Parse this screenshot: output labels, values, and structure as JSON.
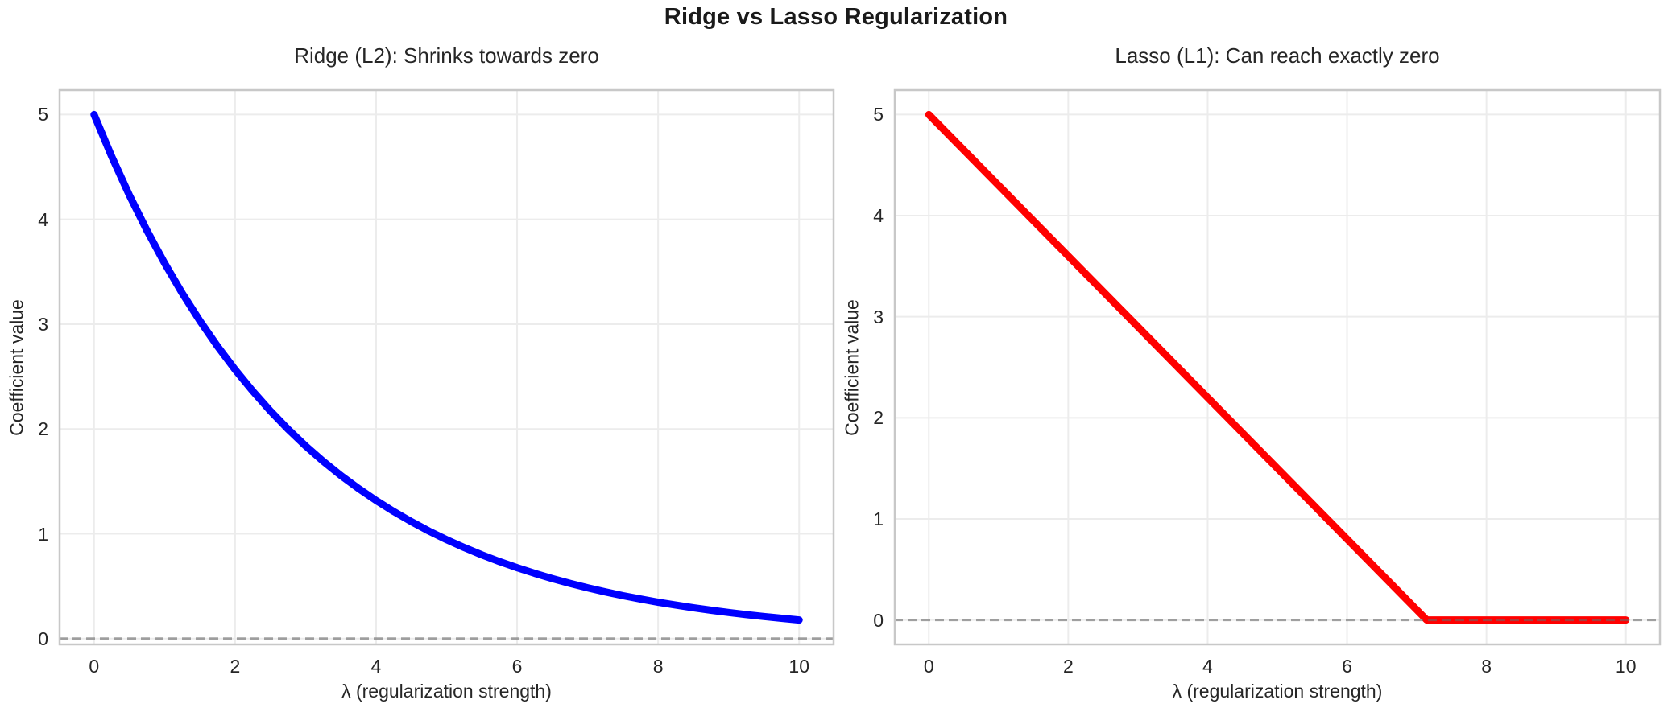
{
  "figure": {
    "suptitle": "Ridge vs Lasso Regularization",
    "background": "#ffffff"
  },
  "theme": {
    "grid_color": "#ececec",
    "spine_color": "#c8c8c8",
    "title_color": "#1a1a1a",
    "text_color": "#262626",
    "zero_line_color": "rgba(105,105,105,0.6)",
    "zero_line_dash": "11 6"
  },
  "chart_data": [
    {
      "id": "ridge",
      "type": "line",
      "title": "Ridge (L2): Shrinks towards zero",
      "xlabel": "λ (regularization strength)",
      "ylabel": "Coefficient value",
      "line_color": "#0000ff",
      "line_width": 9,
      "grid": true,
      "legend": null,
      "xlim": [
        -0.5,
        10.5
      ],
      "ylim": [
        -0.063,
        5.241
      ],
      "xticks": [
        0,
        2,
        4,
        6,
        8,
        10
      ],
      "yticks": [
        0,
        1,
        2,
        3,
        4,
        5
      ],
      "zero_line": {
        "value": 0,
        "style": "dashed"
      },
      "x": [
        0,
        0.25,
        0.5,
        0.75,
        1,
        1.25,
        1.5,
        1.75,
        2,
        2.25,
        2.5,
        2.75,
        3,
        3.25,
        3.5,
        3.75,
        4,
        4.25,
        4.5,
        4.75,
        5,
        5.25,
        5.5,
        5.75,
        6,
        6.25,
        6.5,
        6.75,
        7,
        7.25,
        7.5,
        7.75,
        8,
        8.25,
        8.5,
        8.75,
        9,
        9.25,
        9.5,
        9.75,
        10
      ],
      "y": [
        5.0,
        4.6,
        4.232,
        3.894,
        3.583,
        3.296,
        3.033,
        2.79,
        2.567,
        2.362,
        2.173,
        1.999,
        1.839,
        1.692,
        1.557,
        1.433,
        1.318,
        1.213,
        1.116,
        1.026,
        0.944,
        0.869,
        0.799,
        0.735,
        0.677,
        0.623,
        0.573,
        0.527,
        0.485,
        0.446,
        0.41,
        0.378,
        0.347,
        0.32,
        0.294,
        0.271,
        0.249,
        0.229,
        0.211,
        0.194,
        0.178
      ]
    },
    {
      "id": "lasso",
      "type": "line",
      "title": "Lasso (L1): Can reach exactly zero",
      "xlabel": "λ (regularization strength)",
      "ylabel": "Coefficient value",
      "line_color": "#ff0000",
      "line_width": 9,
      "grid": true,
      "legend": null,
      "xlim": [
        -0.5,
        10.5
      ],
      "ylim": [
        -0.25,
        5.25
      ],
      "xticks": [
        0,
        2,
        4,
        6,
        8,
        10
      ],
      "yticks": [
        0,
        1,
        2,
        3,
        4,
        5
      ],
      "zero_line": {
        "value": 0,
        "style": "dashed"
      },
      "x": [
        0,
        7.143,
        10
      ],
      "y": [
        5,
        0,
        0
      ]
    }
  ]
}
